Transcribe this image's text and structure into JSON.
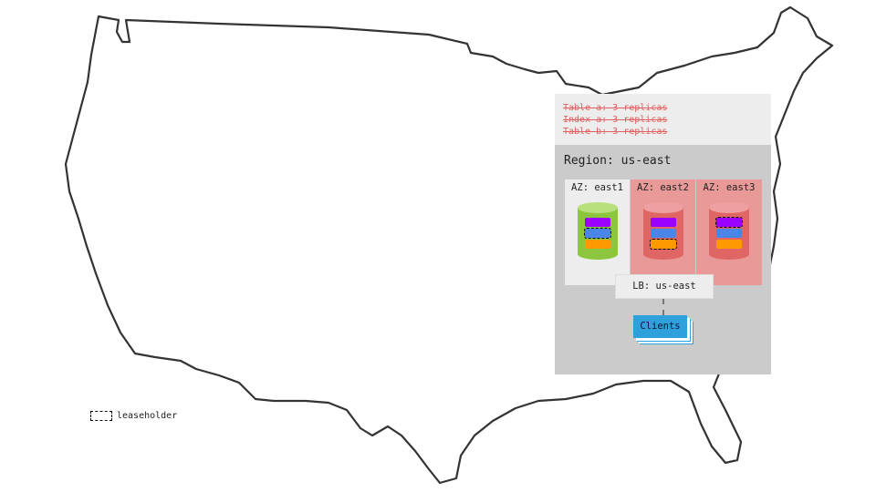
{
  "tables": [
    "Table a: 3 replicas",
    "Index a: 3 replicas",
    "Table b: 3 replicas"
  ],
  "region": "Region: us-east",
  "azs": [
    {
      "label": "AZ: east1",
      "status": "healthy",
      "leaseholder": "blue"
    },
    {
      "label": "AZ: east2",
      "status": "failed",
      "leaseholder": "orange"
    },
    {
      "label": "AZ: east3",
      "status": "failed",
      "leaseholder": "purple"
    }
  ],
  "lb": "LB: us-east",
  "clients": "Clients",
  "legend": "leaseholder",
  "colors": {
    "purple": "#9900ff",
    "blue": "#4a86e8",
    "orange": "#ff9900",
    "healthy": "#8cc63f",
    "failed": "#e06666",
    "failed_bg": "#ea9999",
    "struck_text": "#e06060"
  }
}
